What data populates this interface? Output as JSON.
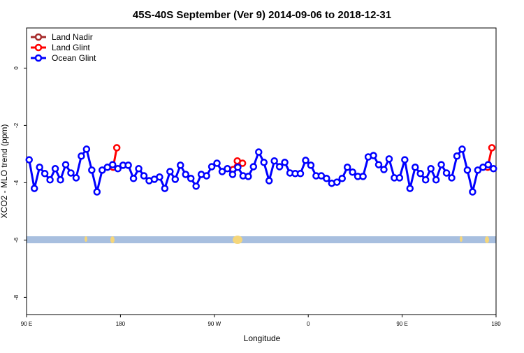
{
  "chart_data": {
    "type": "line",
    "title": "45S-40S September (Ver 9)   2014-09-06 to 2018-12-31",
    "x_label": "Longitude",
    "y_label": "XCO2 - MLO trend (ppm)",
    "xlim": [
      90,
      540
    ],
    "ylim": [
      -8.6,
      1.4
    ],
    "xticks": [
      {
        "value": 90,
        "label": "90 E"
      },
      180,
      {
        "value": 270,
        "label": "90 W"
      },
      {
        "value": 360,
        "label": "0"
      },
      {
        "value": 450,
        "label": "90 E"
      },
      {
        "value": 540,
        "label": "180"
      }
    ],
    "yticks": [
      -8,
      -6,
      -4,
      -2,
      0
    ],
    "legend": "top-left",
    "series": [
      {
        "name": "Land Nadir",
        "color": "#a52a2a",
        "x": [],
        "values": []
      },
      {
        "name": "Land Glint",
        "color": "#ff0000",
        "x": [
          173,
          176.5,
          250,
          288,
          292,
          297,
          450,
          532,
          536
        ],
        "values": [
          -3.46,
          -2.78,
          null,
          -3.54,
          -3.24,
          -3.32,
          null,
          -3.46,
          -2.78
        ]
      },
      {
        "name": "Ocean Glint",
        "color": "#0000ff",
        "x": [
          92.5,
          97.5,
          102.5,
          107.5,
          112.5,
          117.5,
          122.5,
          127.5,
          132.5,
          137.5,
          142.5,
          147.5,
          152.5,
          157.5,
          162.5,
          167.5,
          172.5,
          177.5,
          182.5,
          187.5,
          192.5,
          197.5,
          202.5,
          207.5,
          212.5,
          217.5,
          222.5,
          227.5,
          232.5,
          237.5,
          242.5,
          247.5,
          252.5,
          257.5,
          262.5,
          267.5,
          272.5,
          277.5,
          282.5,
          287.5,
          292.5,
          297.5,
          302.5,
          307.5,
          312.5,
          317.5,
          322.5,
          327.5,
          332.5,
          337.5,
          342.5,
          347.5,
          352.5,
          357.5,
          362.5,
          367.5,
          372.5,
          377.5,
          382.5,
          387.5,
          392.5,
          397.5,
          402.5,
          407.5,
          412.5,
          417.5,
          422.5,
          427.5,
          432.5,
          437.5,
          442.5,
          447.5,
          452.5,
          457.5,
          462.5,
          467.5,
          472.5,
          477.5,
          482.5,
          487.5,
          492.5,
          497.5,
          502.5,
          507.5,
          512.5,
          517.5,
          522.5,
          527.5,
          532.5,
          537.5
        ],
        "values": [
          -3.2,
          -4.2,
          -3.46,
          -3.68,
          -3.9,
          -3.51,
          -3.9,
          -3.37,
          -3.66,
          -3.83,
          -3.07,
          -2.83,
          -3.56,
          -4.32,
          -3.56,
          -3.46,
          -3.37,
          -3.51,
          -3.39,
          -3.39,
          -3.85,
          -3.51,
          -3.76,
          -3.93,
          -3.88,
          -3.8,
          -4.2,
          -3.61,
          -3.88,
          -3.39,
          -3.71,
          -3.85,
          -4.12,
          -3.71,
          -3.76,
          -3.44,
          -3.32,
          -3.61,
          -3.51,
          -3.71,
          -3.46,
          -3.76,
          -3.78,
          -3.44,
          -2.93,
          -3.29,
          -3.93,
          -3.24,
          -3.44,
          -3.29,
          -3.66,
          -3.68,
          -3.68,
          -3.22,
          -3.39,
          -3.76,
          -3.76,
          -3.85,
          -4.02,
          -3.98,
          -3.85,
          -3.46,
          -3.63,
          -3.78,
          -3.78,
          -3.1,
          -3.05,
          -3.37,
          -3.54,
          -3.17,
          -3.83,
          -3.83,
          -3.2,
          -4.2,
          -3.46,
          -3.68,
          -3.9,
          -3.51,
          -3.9,
          -3.37,
          -3.66,
          -3.83,
          -3.07,
          -2.83,
          -3.56,
          -4.32,
          -3.56,
          -3.46,
          -3.37,
          -3.51
        ]
      }
    ]
  }
}
